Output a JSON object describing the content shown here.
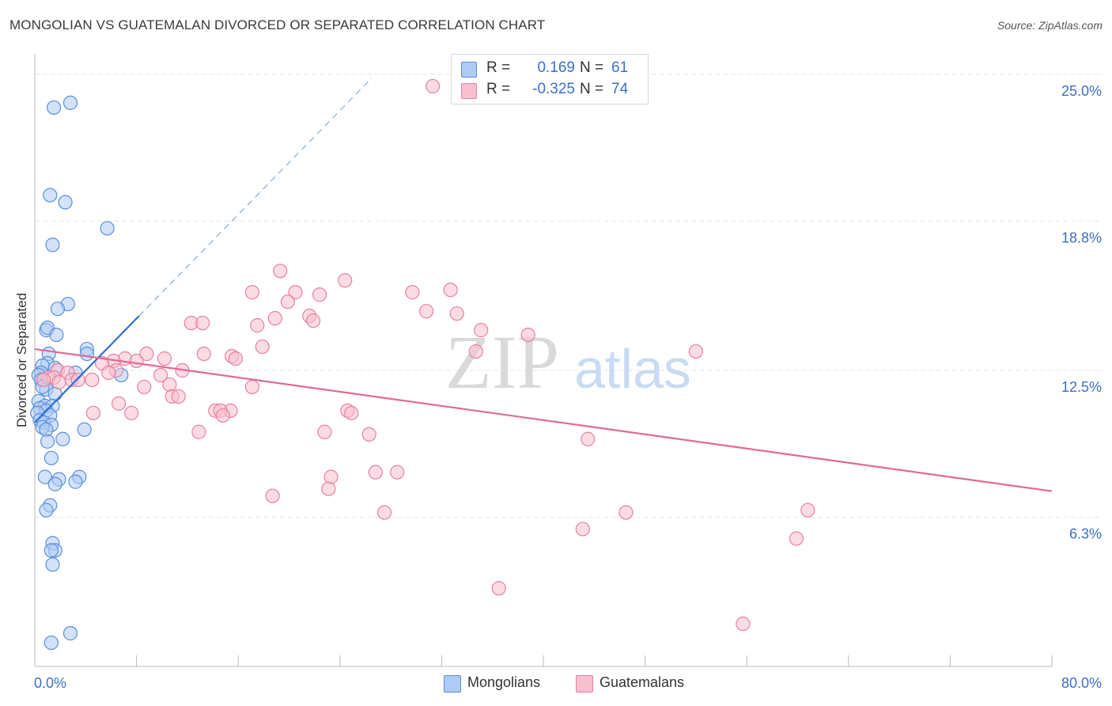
{
  "header": {
    "title": "MONGOLIAN VS GUATEMALAN DIVORCED OR SEPARATED CORRELATION CHART",
    "source": "Source: ZipAtlas.com"
  },
  "watermark": {
    "zip": "ZIP",
    "atlas": "atlas"
  },
  "legend": {
    "mongolians": {
      "r_label": "R =",
      "r_value": "0.169",
      "n_label": "N =",
      "n_value": "61"
    },
    "guatemalans": {
      "r_label": "R =",
      "r_value": "-0.325",
      "n_label": "N =",
      "n_value": "74"
    }
  },
  "colors": {
    "mongolian_fill": "#aecbf5",
    "mongolian_stroke": "#5b8fd8",
    "mongolian_line": "#2f6fd6",
    "guatemalan_fill": "#f7bfd0",
    "guatemalan_stroke": "#e8809f",
    "guatemalan_line": "#e06a93",
    "tick_label": "#3b6fc8",
    "grid": "#e4e4e4"
  },
  "chart_data": {
    "type": "scatter",
    "title": "MONGOLIAN VS GUATEMALAN DIVORCED OR SEPARATED CORRELATION CHART",
    "xlabel": "",
    "ylabel": "Divorced or Separated",
    "xlim": [
      0,
      80
    ],
    "ylim": [
      0,
      25.6
    ],
    "x_tick_labels": [
      "0.0%",
      "80.0%"
    ],
    "y_ticks": [
      6.3,
      12.5,
      18.8,
      25.0
    ],
    "y_tick_labels": [
      "6.3%",
      "12.5%",
      "18.8%",
      "25.0%"
    ],
    "grid": true,
    "legend_position": "bottom-center",
    "series": [
      {
        "name": "Mongolians",
        "r": 0.169,
        "n": 61,
        "trend": {
          "x0": 0,
          "y0": 10.3,
          "x1": 8.2,
          "y1": 14.8,
          "dashed_to_x": 26.5
        },
        "points": [
          [
            2.8,
            23.8
          ],
          [
            1.5,
            23.6
          ],
          [
            1.2,
            19.9
          ],
          [
            2.4,
            19.6
          ],
          [
            5.7,
            18.5
          ],
          [
            1.4,
            17.8
          ],
          [
            2.6,
            15.3
          ],
          [
            1.8,
            15.1
          ],
          [
            0.9,
            14.2
          ],
          [
            1.0,
            14.3
          ],
          [
            1.7,
            14.0
          ],
          [
            4.1,
            13.4
          ],
          [
            4.1,
            13.2
          ],
          [
            1.1,
            13.2
          ],
          [
            1.0,
            12.8
          ],
          [
            0.6,
            12.7
          ],
          [
            1.6,
            12.6
          ],
          [
            0.5,
            12.4
          ],
          [
            0.3,
            12.3
          ],
          [
            3.2,
            12.4
          ],
          [
            6.8,
            12.3
          ],
          [
            0.5,
            12.1
          ],
          [
            0.9,
            11.7
          ],
          [
            0.6,
            11.8
          ],
          [
            1.6,
            11.5
          ],
          [
            0.3,
            11.2
          ],
          [
            0.8,
            11.0
          ],
          [
            1.4,
            11.0
          ],
          [
            0.4,
            10.9
          ],
          [
            0.9,
            10.8
          ],
          [
            1.2,
            10.6
          ],
          [
            0.2,
            10.7
          ],
          [
            0.4,
            10.4
          ],
          [
            0.7,
            10.3
          ],
          [
            1.3,
            10.2
          ],
          [
            0.6,
            10.1
          ],
          [
            3.9,
            10.0
          ],
          [
            0.9,
            10.0
          ],
          [
            2.2,
            9.6
          ],
          [
            1.0,
            9.5
          ],
          [
            1.3,
            8.8
          ],
          [
            0.8,
            8.0
          ],
          [
            3.5,
            8.0
          ],
          [
            1.9,
            7.9
          ],
          [
            3.2,
            7.8
          ],
          [
            1.6,
            7.7
          ],
          [
            1.2,
            6.8
          ],
          [
            0.9,
            6.6
          ],
          [
            1.4,
            5.2
          ],
          [
            1.6,
            4.9
          ],
          [
            1.3,
            4.9
          ],
          [
            1.4,
            4.3
          ],
          [
            2.8,
            1.4
          ],
          [
            1.3,
            1.0
          ]
        ]
      },
      {
        "name": "Guatemalans",
        "r": -0.325,
        "n": 74,
        "trend": {
          "x0": 0,
          "y0": 13.4,
          "x1": 80,
          "y1": 7.4
        },
        "points": [
          [
            31.3,
            24.5
          ],
          [
            19.3,
            16.7
          ],
          [
            24.4,
            16.3
          ],
          [
            17.1,
            15.8
          ],
          [
            20.5,
            15.8
          ],
          [
            22.4,
            15.7
          ],
          [
            29.7,
            15.8
          ],
          [
            32.7,
            15.9
          ],
          [
            19.9,
            15.4
          ],
          [
            30.8,
            15.0
          ],
          [
            33.2,
            14.9
          ],
          [
            18.9,
            14.7
          ],
          [
            21.6,
            14.8
          ],
          [
            21.9,
            14.6
          ],
          [
            12.3,
            14.5
          ],
          [
            13.2,
            14.5
          ],
          [
            17.5,
            14.4
          ],
          [
            35.1,
            14.2
          ],
          [
            38.8,
            14.0
          ],
          [
            17.9,
            13.5
          ],
          [
            52.0,
            13.3
          ],
          [
            34.7,
            13.3
          ],
          [
            13.3,
            13.2
          ],
          [
            15.5,
            13.1
          ],
          [
            8.8,
            13.2
          ],
          [
            15.8,
            13.0
          ],
          [
            10.2,
            13.0
          ],
          [
            7.1,
            13.0
          ],
          [
            6.2,
            12.9
          ],
          [
            8.0,
            12.9
          ],
          [
            5.3,
            12.8
          ],
          [
            11.6,
            12.5
          ],
          [
            6.4,
            12.5
          ],
          [
            5.8,
            12.4
          ],
          [
            1.8,
            12.5
          ],
          [
            2.6,
            12.4
          ],
          [
            9.9,
            12.3
          ],
          [
            1.1,
            12.2
          ],
          [
            2.9,
            12.1
          ],
          [
            3.4,
            12.1
          ],
          [
            1.5,
            12.2
          ],
          [
            4.5,
            12.1
          ],
          [
            1.9,
            12.0
          ],
          [
            0.7,
            12.1
          ],
          [
            10.6,
            11.9
          ],
          [
            8.6,
            11.8
          ],
          [
            17.1,
            11.8
          ],
          [
            10.8,
            11.4
          ],
          [
            11.3,
            11.4
          ],
          [
            6.6,
            11.1
          ],
          [
            15.4,
            10.8
          ],
          [
            24.6,
            10.8
          ],
          [
            14.2,
            10.8
          ],
          [
            14.6,
            10.8
          ],
          [
            24.9,
            10.7
          ],
          [
            4.6,
            10.7
          ],
          [
            7.6,
            10.7
          ],
          [
            14.8,
            10.6
          ],
          [
            12.9,
            9.9
          ],
          [
            22.8,
            9.9
          ],
          [
            26.3,
            9.8
          ],
          [
            43.5,
            9.6
          ],
          [
            28.5,
            8.2
          ],
          [
            26.8,
            8.2
          ],
          [
            23.3,
            8.0
          ],
          [
            23.1,
            7.5
          ],
          [
            18.7,
            7.2
          ],
          [
            27.5,
            6.5
          ],
          [
            46.5,
            6.5
          ],
          [
            60.8,
            6.6
          ],
          [
            43.1,
            5.8
          ],
          [
            59.9,
            5.4
          ],
          [
            36.5,
            3.3
          ],
          [
            55.7,
            1.8
          ]
        ]
      }
    ]
  },
  "bottom_legend": {
    "mongolians": "Mongolians",
    "guatemalans": "Guatemalans"
  }
}
